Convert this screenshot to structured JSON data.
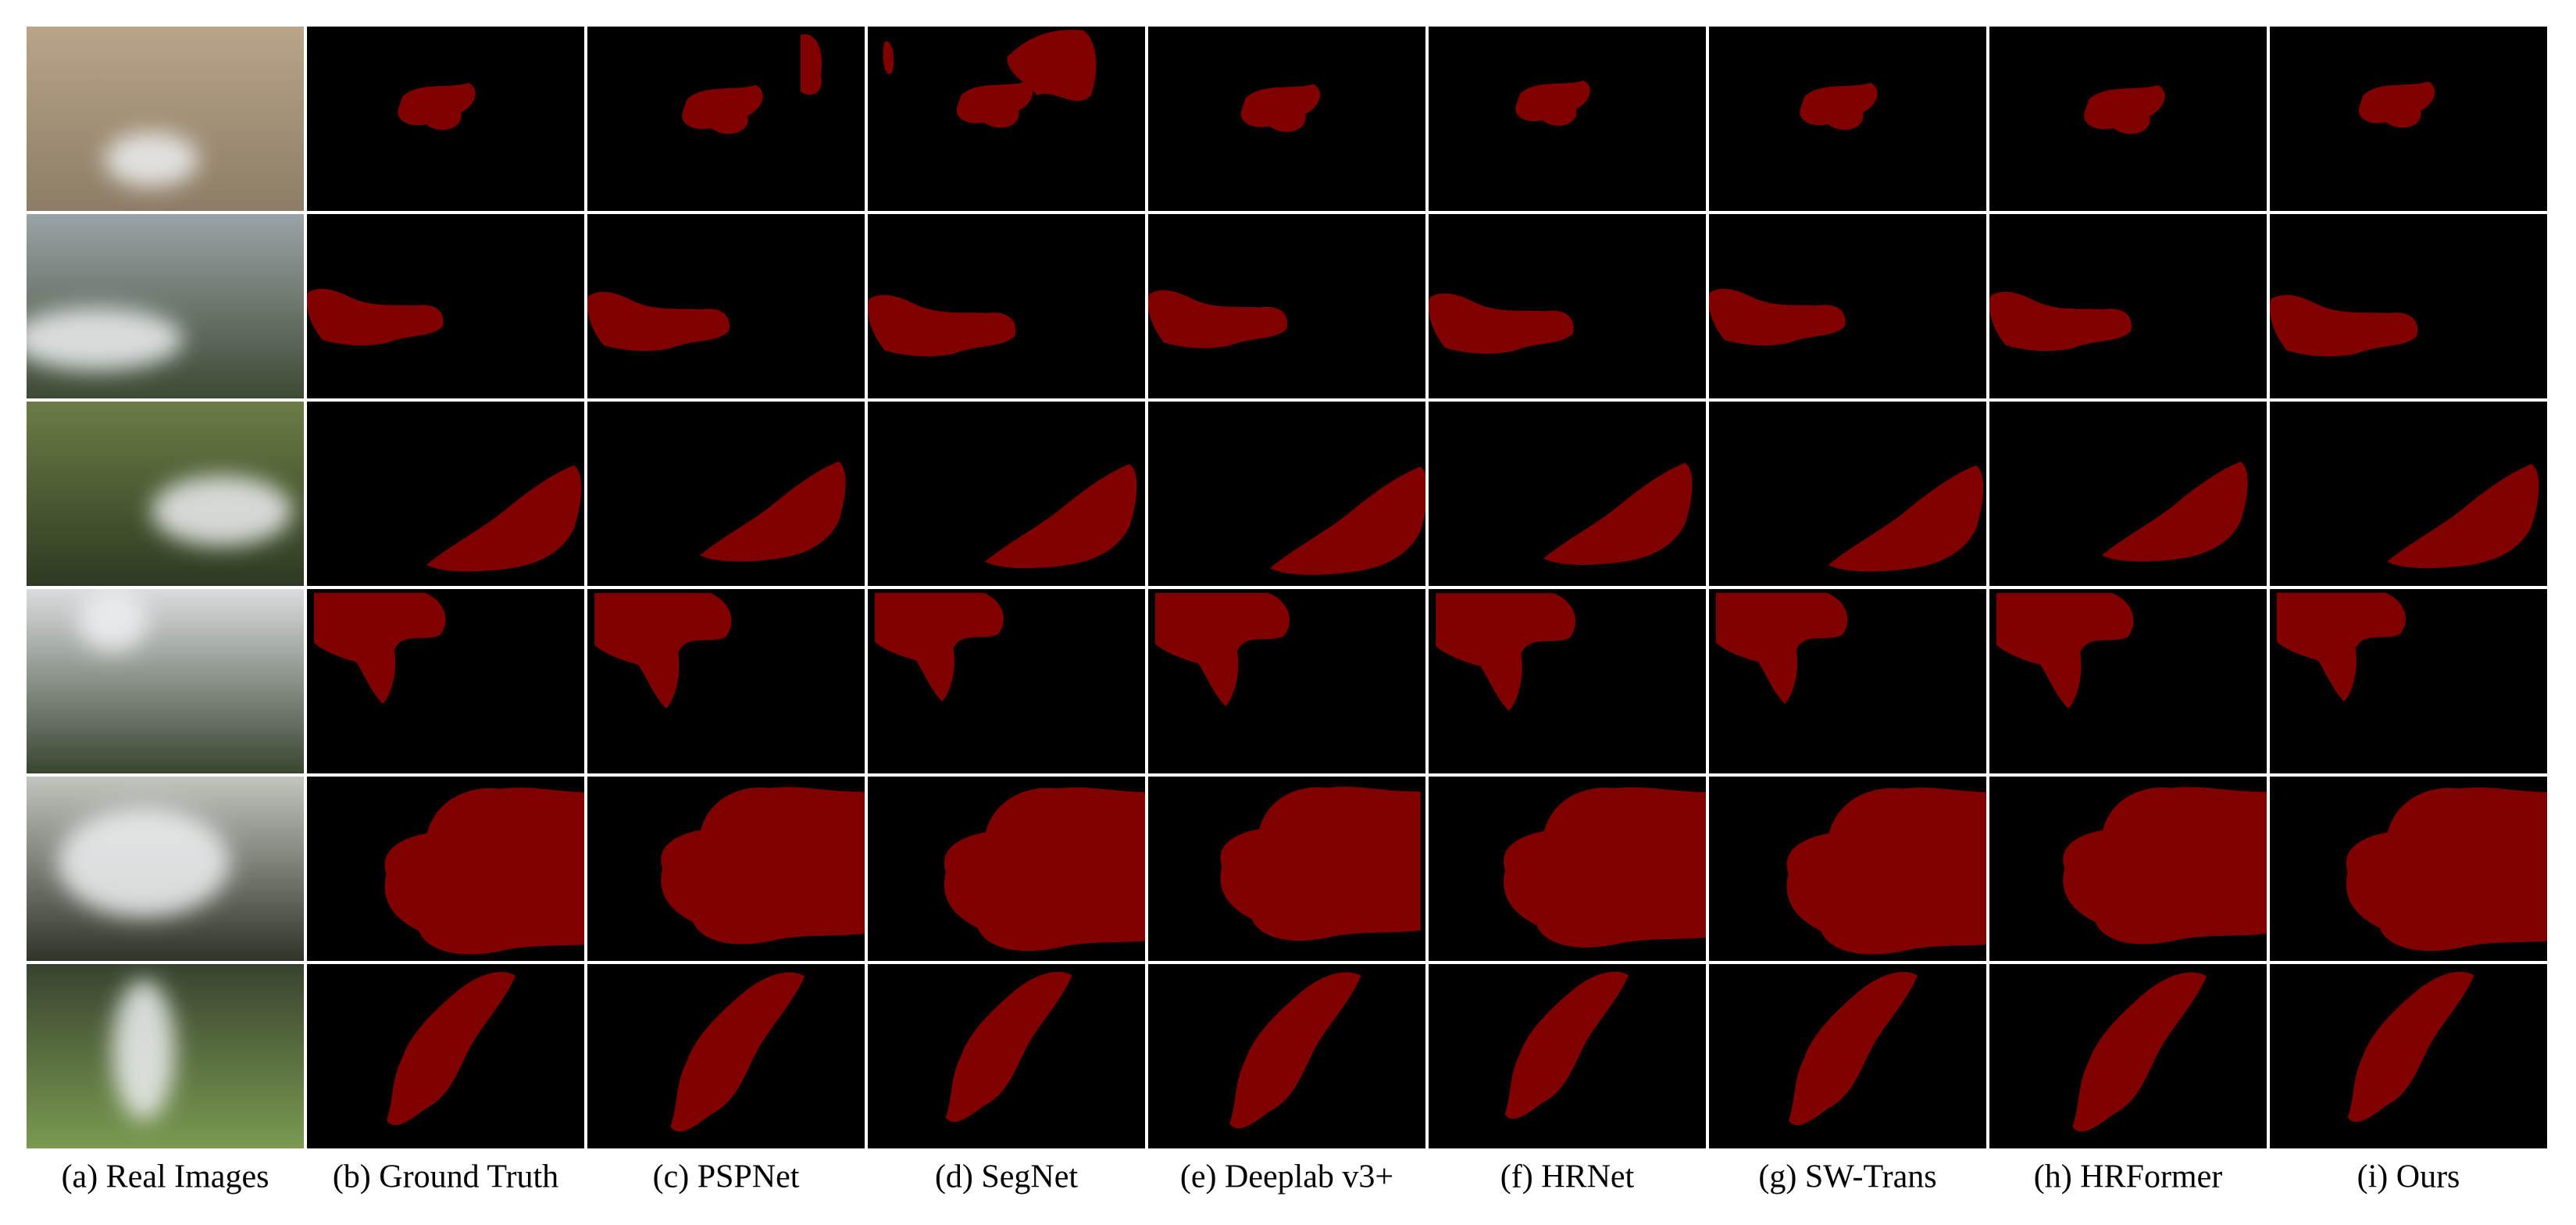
{
  "figure": {
    "captions": [
      "(a) Real Images",
      "(b) Ground Truth",
      "(c) PSPNet",
      "(d) SegNet",
      "(e) Deeplab v3+",
      "(f) HRNet",
      "(g) SW-Trans",
      "(h) HRFormer",
      "(i) Ours"
    ]
  }
}
